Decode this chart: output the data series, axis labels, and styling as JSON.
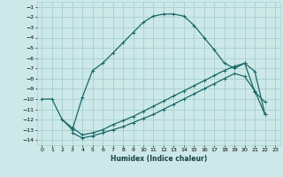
{
  "xlabel": "Humidex (Indice chaleur)",
  "bg_color": "#cce8e8",
  "grid_color": "#a8d0d0",
  "line_color": "#1a6868",
  "xlim": [
    -0.5,
    23.5
  ],
  "ylim": [
    -14.5,
    -0.5
  ],
  "xticks": [
    0,
    1,
    2,
    3,
    4,
    5,
    6,
    7,
    8,
    9,
    10,
    11,
    12,
    13,
    14,
    15,
    16,
    17,
    18,
    19,
    20,
    21,
    22,
    23
  ],
  "yticks": [
    -1,
    -2,
    -3,
    -4,
    -5,
    -6,
    -7,
    -8,
    -9,
    -10,
    -11,
    -12,
    -13,
    -14
  ],
  "line1_x": [
    0,
    1,
    2,
    3,
    4,
    5,
    6,
    7,
    8,
    9,
    10,
    11,
    12,
    13,
    14,
    15,
    16,
    17,
    18,
    19,
    20,
    21,
    22
  ],
  "line1_y": [
    -10,
    -10,
    -12,
    -13,
    -9.8,
    -7.2,
    -6.5,
    -5.5,
    -4.5,
    -3.5,
    -2.5,
    -1.9,
    -1.7,
    -1.7,
    -1.9,
    -2.8,
    -4.0,
    -5.2,
    -6.5,
    -7.0,
    -6.5,
    -9.3,
    -10.3
  ],
  "line2_x": [
    2,
    3,
    4,
    5,
    6,
    7,
    8,
    9,
    10,
    11,
    12,
    13,
    14,
    15,
    16,
    17,
    18,
    19,
    20,
    21,
    22
  ],
  "line2_y": [
    -12.0,
    -12.8,
    -13.5,
    -13.3,
    -13.0,
    -12.5,
    -12.1,
    -11.7,
    -11.2,
    -10.7,
    -10.2,
    -9.7,
    -9.2,
    -8.7,
    -8.2,
    -7.7,
    -7.2,
    -6.8,
    -6.5,
    -7.3,
    -11.5
  ],
  "line3_x": [
    3,
    4,
    5,
    6,
    7,
    8,
    9,
    10,
    11,
    12,
    13,
    14,
    15,
    16,
    17,
    18,
    19,
    20,
    21,
    22
  ],
  "line3_y": [
    -13.3,
    -13.8,
    -13.6,
    -13.3,
    -13.0,
    -12.7,
    -12.3,
    -11.9,
    -11.5,
    -11.0,
    -10.5,
    -10.0,
    -9.5,
    -9.0,
    -8.5,
    -8.0,
    -7.5,
    -7.8,
    -9.2,
    -11.5
  ]
}
